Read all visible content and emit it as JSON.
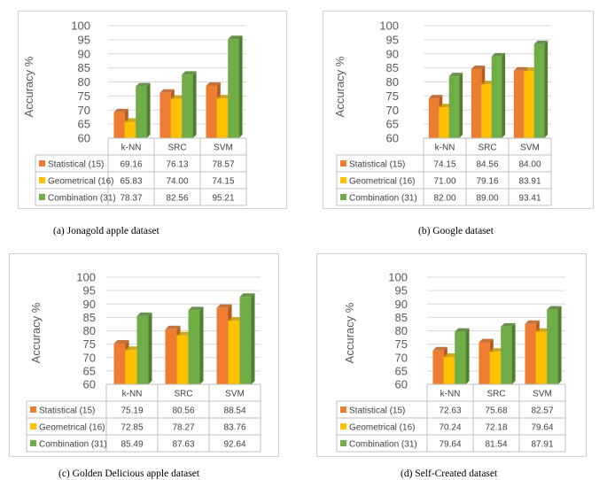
{
  "colors": {
    "statistical": "#ED7D31",
    "statistical_side": "#B85A1C",
    "geometrical": "#FFC000",
    "geometrical_side": "#C89600",
    "combination": "#70AD47",
    "combination_side": "#4E7F2F",
    "grid": "#d9d9d9"
  },
  "chart_data": [
    {
      "type": "bar",
      "title": "",
      "caption": "(a)    Jonagold apple dataset",
      "ylabel": "Accuracy  %",
      "ylim": [
        60,
        100
      ],
      "yticks": [
        "60",
        "65",
        "70",
        "75",
        "80",
        "85",
        "90",
        "95",
        "100"
      ],
      "categories": [
        "k-NN",
        "SRC",
        "SVM"
      ],
      "series": [
        {
          "name": "Statistical (15)",
          "values": [
            69.16,
            76.13,
            78.57
          ],
          "labels": [
            "69.16",
            "76.13",
            "78.57"
          ]
        },
        {
          "name": "Geometrical (16)",
          "values": [
            65.83,
            74.0,
            74.15
          ],
          "labels": [
            "65.83",
            "74.00",
            "74.15"
          ]
        },
        {
          "name": "Combination (31)",
          "values": [
            78.37,
            82.56,
            95.21
          ],
          "labels": [
            "78.37",
            "82.56",
            "95.21"
          ]
        }
      ]
    },
    {
      "type": "bar",
      "title": "",
      "caption": "(b) Google dataset",
      "ylabel": "Accuracy  %",
      "ylim": [
        60,
        100
      ],
      "yticks": [
        "60",
        "65",
        "70",
        "75",
        "80",
        "85",
        "90",
        "95",
        "100"
      ],
      "categories": [
        "k-NN",
        "SRC",
        "SVM"
      ],
      "series": [
        {
          "name": "Statistical (15)",
          "values": [
            74.15,
            84.56,
            84.0
          ],
          "labels": [
            "74.15",
            "84.56",
            "84.00"
          ]
        },
        {
          "name": "Geometrical (16)",
          "values": [
            71.0,
            79.16,
            83.91
          ],
          "labels": [
            "71.00",
            "79.16",
            "83.91"
          ]
        },
        {
          "name": "Combination (31)",
          "values": [
            82.0,
            89.0,
            93.41
          ],
          "labels": [
            "82.00",
            "89.00",
            "93.41"
          ]
        }
      ]
    },
    {
      "type": "bar",
      "title": "",
      "caption": "(c) Golden Delicious apple dataset",
      "ylabel": "Accuracy %",
      "ylim": [
        60,
        100
      ],
      "yticks": [
        "60",
        "65",
        "70",
        "75",
        "80",
        "85",
        "90",
        "95",
        "100"
      ],
      "categories": [
        "k-NN",
        "SRC",
        "SVM"
      ],
      "series": [
        {
          "name": "Statistical (15)",
          "values": [
            75.19,
            80.56,
            88.54
          ],
          "labels": [
            "75.19",
            "80.56",
            "88.54"
          ]
        },
        {
          "name": "Geometrical (16)",
          "values": [
            72.85,
            78.27,
            83.76
          ],
          "labels": [
            "72.85",
            "78.27",
            "83.76"
          ]
        },
        {
          "name": "Combination (31)",
          "values": [
            85.49,
            87.63,
            92.64
          ],
          "labels": [
            "85.49",
            "87.63",
            "92.64"
          ]
        }
      ]
    },
    {
      "type": "bar",
      "title": "",
      "caption": "(d) Self-Created dataset",
      "ylabel": "Accuracy %",
      "ylim": [
        60,
        100
      ],
      "yticks": [
        "60",
        "65",
        "70",
        "75",
        "80",
        "85",
        "90",
        "95",
        "100"
      ],
      "categories": [
        "k-NN",
        "SRC",
        "SVM"
      ],
      "series": [
        {
          "name": "Statistical (15)",
          "values": [
            72.63,
            75.68,
            82.57
          ],
          "labels": [
            "72.63",
            "75.68",
            "82.57"
          ]
        },
        {
          "name": "Geometrical (16)",
          "values": [
            70.24,
            72.18,
            79.64
          ],
          "labels": [
            "70.24",
            "72.18",
            "79.64"
          ]
        },
        {
          "name": "Combination (31)",
          "values": [
            79.64,
            81.54,
            87.91
          ],
          "labels": [
            "79.64",
            "81.54",
            "87.91"
          ]
        }
      ]
    }
  ]
}
